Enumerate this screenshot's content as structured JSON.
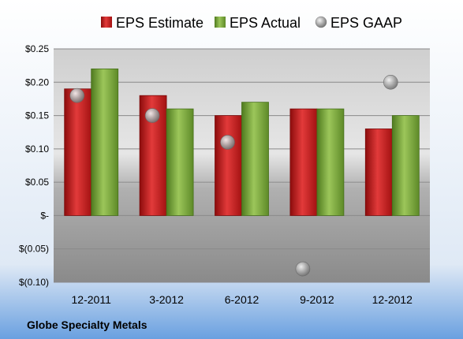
{
  "chart_data": {
    "type": "bar",
    "categories": [
      "12-2011",
      "3-2012",
      "6-2012",
      "9-2012",
      "12-2012"
    ],
    "series": [
      {
        "name": "EPS Estimate",
        "values": [
          0.19,
          0.18,
          0.15,
          0.16,
          0.13
        ],
        "color": "#cc1f1f",
        "kind": "bar"
      },
      {
        "name": "EPS Actual",
        "values": [
          0.22,
          0.16,
          0.17,
          0.16,
          0.15
        ],
        "color": "#7aa83a",
        "kind": "bar"
      },
      {
        "name": "EPS GAAP",
        "values": [
          0.18,
          0.15,
          0.11,
          -0.08,
          0.2
        ],
        "color": "#9a9a9a",
        "kind": "scatter"
      }
    ],
    "ylim": [
      -0.1,
      0.25
    ],
    "yticks": [
      {
        "value": 0.25,
        "label": "$0.25"
      },
      {
        "value": 0.2,
        "label": "$0.20"
      },
      {
        "value": 0.15,
        "label": "$0.15"
      },
      {
        "value": 0.1,
        "label": "$0.10"
      },
      {
        "value": 0.05,
        "label": "$0.05"
      },
      {
        "value": 0.0,
        "label": "$-"
      },
      {
        "value": -0.05,
        "label": "$(0.05)"
      },
      {
        "value": -0.1,
        "label": "$(0.10)"
      }
    ],
    "legend_position": "top",
    "grid": true
  },
  "footer": {
    "company": "Globe Specialty Metals"
  }
}
